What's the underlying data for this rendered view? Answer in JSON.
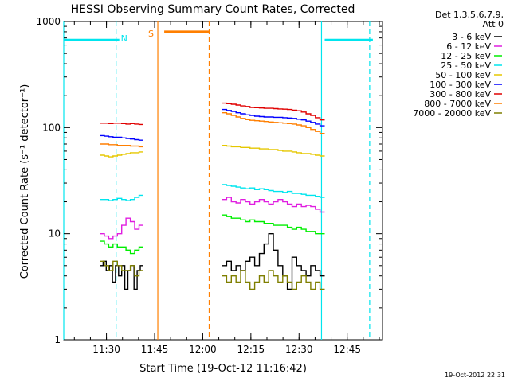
{
  "chart_data": {
    "type": "line",
    "title": "HESSI Observing Summary Count Rates, Corrected",
    "xlabel": "Start Time (19-Oct-12 11:16:42)",
    "ylabel": "Corrected Count Rate (s⁻¹ detector⁻¹)",
    "y_scale": "log",
    "ylim": [
      1,
      1000
    ],
    "xlim": [
      "11:16:42",
      "12:56:00"
    ],
    "x_tick_labels": [
      "11:30",
      "11:45",
      "12:00",
      "12:15",
      "12:30",
      "12:45"
    ],
    "y_tick_labels": [
      "1",
      "10",
      "100",
      "1000"
    ],
    "grid": false,
    "legend_placement": "outside-right",
    "legend_header": [
      "Det 1,3,5,6,7,9,",
      "Att 0"
    ],
    "flags": [
      {
        "label": "N",
        "color": "#00e5ee"
      },
      {
        "label": "S",
        "color": "#ff7f00"
      }
    ],
    "flag_bars": [
      {
        "color": "#00e5ee",
        "from": "11:16:42",
        "to": "11:34:00",
        "value": 670
      },
      {
        "color": "#ff7f00",
        "from": "11:48:00",
        "to": "12:02:00",
        "value": 800
      },
      {
        "color": "#00e5ee",
        "from": "12:38:00",
        "to": "12:53:00",
        "value": 670
      }
    ],
    "time_markers": [
      {
        "time": "11:16:42",
        "color": "#00e5ee",
        "style": "solid"
      },
      {
        "time": "11:33:00",
        "color": "#00e5ee",
        "style": "dashed"
      },
      {
        "time": "11:46:00",
        "color": "#ff7f00",
        "style": "solid"
      },
      {
        "time": "12:02:00",
        "color": "#ff7f00",
        "style": "dashed"
      },
      {
        "time": "12:37:00",
        "color": "#00e5ee",
        "style": "solid"
      },
      {
        "time": "12:52:00",
        "color": "#00e5ee",
        "style": "dashed"
      }
    ],
    "series": [
      {
        "name": "3 - 6 keV",
        "color": "#000000",
        "segment1": {
          "from": "11:28:00",
          "to": "11:41:30",
          "values": [
            5.0,
            5.5,
            4.5,
            5.0,
            3.5,
            5.0,
            4.0,
            5.0,
            3.0,
            4.5,
            5.0,
            3.0,
            4.5,
            5.0
          ]
        },
        "segment2": {
          "from": "12:06:00",
          "to": "12:38:00",
          "values": [
            5.0,
            5.5,
            4.5,
            5.0,
            4.5,
            5.5,
            6.0,
            5.0,
            6.5,
            8.0,
            10.0,
            7.0,
            5.0,
            4.0,
            3.0,
            6.0,
            5.0,
            4.5,
            4.0,
            5.0,
            4.5,
            4.0
          ]
        }
      },
      {
        "name": "6 - 12 keV",
        "color": "#e01ee0",
        "segment1": {
          "from": "11:28:00",
          "to": "11:41:30",
          "values": [
            10.0,
            9.5,
            9.0,
            9.5,
            10.0,
            12.0,
            14.0,
            13.0,
            11.0,
            12.0
          ]
        },
        "segment2": {
          "from": "12:06:00",
          "to": "12:38:00",
          "values": [
            21.0,
            22.0,
            20.0,
            19.5,
            21.0,
            20.0,
            19.0,
            20.0,
            21.0,
            20.0,
            19.0,
            20.0,
            21.0,
            20.0,
            19.0,
            18.0,
            19.0,
            18.0,
            18.5,
            18.0,
            17.0,
            16.0
          ]
        }
      },
      {
        "name": "12 - 25 keV",
        "color": "#00ee00",
        "segment1": {
          "from": "11:28:00",
          "to": "11:41:30",
          "values": [
            8.5,
            8.0,
            7.5,
            8.0,
            7.5,
            7.5,
            7.0,
            6.5,
            7.0,
            7.5
          ]
        },
        "segment2": {
          "from": "12:06:00",
          "to": "12:38:00",
          "values": [
            15.0,
            14.5,
            14.0,
            14.0,
            13.5,
            13.0,
            13.5,
            13.0,
            13.0,
            12.5,
            12.5,
            12.0,
            12.0,
            12.0,
            11.5,
            11.0,
            11.5,
            11.0,
            10.5,
            10.5,
            10.0,
            10.0
          ]
        }
      },
      {
        "name": "25 - 50 keV",
        "color": "#00e5ee",
        "segment1": {
          "from": "11:28:00",
          "to": "11:41:30",
          "values": [
            21.0,
            21.0,
            20.5,
            21.0,
            21.5,
            21.0,
            20.5,
            21.0,
            22.0,
            23.0
          ]
        },
        "segment2": {
          "from": "12:06:00",
          "to": "12:38:00",
          "values": [
            29.0,
            28.5,
            28.0,
            27.5,
            27.0,
            26.5,
            27.0,
            26.0,
            26.5,
            26.0,
            25.5,
            25.0,
            25.0,
            24.5,
            25.0,
            24.0,
            24.0,
            23.5,
            23.0,
            23.0,
            22.5,
            22.0
          ]
        }
      },
      {
        "name": "50 - 100 keV",
        "color": "#e5c700",
        "segment1": {
          "from": "11:28:00",
          "to": "11:41:30",
          "values": [
            55.0,
            54.0,
            53.0,
            54.0,
            55.0,
            56.0,
            57.0,
            58.0,
            58.0,
            59.0
          ]
        },
        "segment2": {
          "from": "12:06:00",
          "to": "12:38:00",
          "values": [
            68.0,
            67.0,
            66.0,
            66.0,
            65.0,
            65.0,
            64.0,
            64.0,
            63.0,
            63.0,
            62.0,
            62.0,
            61.0,
            60.0,
            60.0,
            59.0,
            58.0,
            57.0,
            57.0,
            56.0,
            55.0,
            54.0
          ]
        }
      },
      {
        "name": "100 - 300 keV",
        "color": "#0000ff",
        "segment1": {
          "from": "11:28:00",
          "to": "11:41:30",
          "values": [
            84.0,
            83.0,
            82.0,
            81.0,
            81.0,
            80.0,
            79.0,
            78.0,
            77.0,
            76.0
          ]
        },
        "segment2": {
          "from": "12:06:00",
          "to": "12:38:00",
          "values": [
            148.0,
            145.0,
            142.0,
            138.0,
            135.0,
            132.0,
            130.0,
            128.0,
            127.0,
            126.0,
            126.0,
            125.0,
            125.0,
            124.0,
            123.0,
            122.0,
            120.0,
            118.0,
            115.0,
            112.0,
            108.0,
            104.0
          ]
        }
      },
      {
        "name": "300 - 800 keV",
        "color": "#e00000",
        "segment1": {
          "from": "11:28:00",
          "to": "11:41:30",
          "values": [
            110.0,
            110.0,
            109.0,
            110.0,
            110.0,
            109.0,
            108.0,
            109.0,
            108.0,
            107.0
          ]
        },
        "segment2": {
          "from": "12:06:00",
          "to": "12:38:00",
          "values": [
            170.0,
            168.0,
            166.0,
            163.0,
            160.0,
            158.0,
            155.0,
            154.0,
            153.0,
            152.0,
            152.0,
            151.0,
            150.0,
            149.0,
            148.0,
            146.0,
            144.0,
            140.0,
            135.0,
            130.0,
            124.0,
            118.0
          ]
        }
      },
      {
        "name": "800 - 7000 keV",
        "color": "#ff7f00",
        "segment1": {
          "from": "11:28:00",
          "to": "11:41:30",
          "values": [
            70.0,
            70.0,
            69.0,
            69.0,
            68.0,
            68.0,
            68.0,
            67.0,
            67.0,
            66.0
          ]
        },
        "segment2": {
          "from": "12:06:00",
          "to": "12:38:00",
          "values": [
            138.0,
            135.0,
            130.0,
            126.0,
            122.0,
            119.0,
            117.0,
            116.0,
            115.0,
            114.0,
            113.0,
            112.0,
            111.0,
            110.0,
            109.0,
            108.0,
            106.0,
            104.0,
            100.0,
            96.0,
            92.0,
            88.0
          ]
        }
      },
      {
        "name": "7000 - 20000 keV",
        "color": "#7f7f00",
        "segment1": {
          "from": "11:28:00",
          "to": "11:41:30",
          "values": [
            5.5,
            5.0,
            4.5,
            5.5,
            5.0,
            4.5,
            4.5,
            5.0,
            4.0,
            4.5
          ]
        },
        "segment2": {
          "from": "12:06:00",
          "to": "12:38:00",
          "values": [
            4.0,
            3.5,
            4.0,
            3.5,
            4.5,
            3.5,
            3.0,
            3.5,
            4.0,
            3.5,
            4.5,
            4.0,
            3.5,
            4.0,
            3.5,
            3.0,
            3.5,
            4.0,
            3.5,
            3.0,
            3.5,
            3.0
          ]
        }
      }
    ]
  },
  "timestamp": "19-Oct-2012 22:31"
}
